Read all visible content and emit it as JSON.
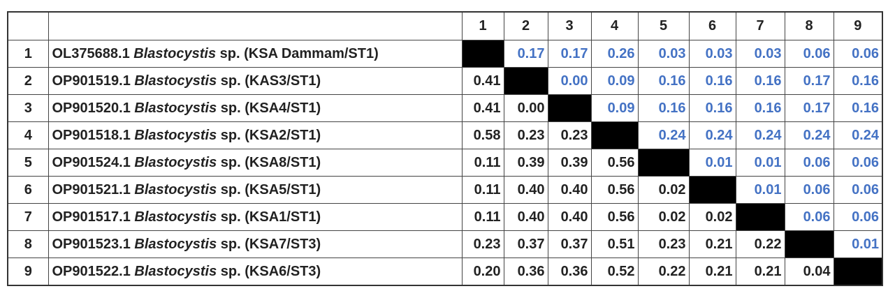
{
  "table": {
    "columns": [
      "1",
      "2",
      "3",
      "4",
      "5",
      "6",
      "7",
      "8",
      "9"
    ],
    "rows": [
      {
        "index": "1",
        "accession": "OL375688.1",
        "genus": "Blastocystis",
        "rest": "sp. (KSA Dammam/ST1)",
        "cells": [
          null,
          "0.17",
          "0.17",
          "0.26",
          "0.03",
          "0.03",
          "0.03",
          "0.06",
          "0.06"
        ]
      },
      {
        "index": "2",
        "accession": "OP901519.1",
        "genus": "Blastocystis",
        "rest": "sp. (KAS3/ST1)",
        "cells": [
          "0.41",
          null,
          "0.00",
          "0.09",
          "0.16",
          "0.16",
          "0.16",
          "0.17",
          "0.16"
        ]
      },
      {
        "index": "3",
        "accession": "OP901520.1",
        "genus": "Blastocystis",
        "rest": "sp. (KSA4/ST1)",
        "cells": [
          "0.41",
          "0.00",
          null,
          "0.09",
          "0.16",
          "0.16",
          "0.16",
          "0.17",
          "0.16"
        ]
      },
      {
        "index": "4",
        "accession": "OP901518.1",
        "genus": "Blastocystis",
        "rest": "sp. (KSA2/ST1)",
        "cells": [
          "0.58",
          "0.23",
          "0.23",
          null,
          "0.24",
          "0.24",
          "0.24",
          "0.24",
          "0.24"
        ]
      },
      {
        "index": "5",
        "accession": "OP901524.1",
        "genus": "Blastocystis",
        "rest": "sp. (KSA8/ST1)",
        "cells": [
          "0.11",
          "0.39",
          "0.39",
          "0.56",
          null,
          "0.01",
          "0.01",
          "0.06",
          "0.06"
        ]
      },
      {
        "index": "6",
        "accession": "OP901521.1",
        "genus": "Blastocystis",
        "rest": "sp. (KSA5/ST1)",
        "cells": [
          "0.11",
          "0.40",
          "0.40",
          "0.56",
          "0.02",
          null,
          "0.01",
          "0.06",
          "0.06"
        ]
      },
      {
        "index": "7",
        "accession": "OP901517.1",
        "genus": "Blastocystis",
        "rest": "sp. (KSA1/ST1)",
        "cells": [
          "0.11",
          "0.40",
          "0.40",
          "0.56",
          "0.02",
          "0.02",
          null,
          "0.06",
          "0.06"
        ]
      },
      {
        "index": "8",
        "accession": "OP901523.1",
        "genus": "Blastocystis",
        "rest": "sp. (KSA7/ST3)",
        "cells": [
          "0.23",
          "0.37",
          "0.37",
          "0.51",
          "0.23",
          "0.21",
          "0.22",
          null,
          "0.01"
        ]
      },
      {
        "index": "9",
        "accession": "OP901522.1",
        "genus": "Blastocystis",
        "rest": "sp. (KSA6/ST3)",
        "cells": [
          "0.20",
          "0.36",
          "0.36",
          "0.52",
          "0.22",
          "0.21",
          "0.21",
          "0.04",
          null
        ]
      }
    ]
  }
}
